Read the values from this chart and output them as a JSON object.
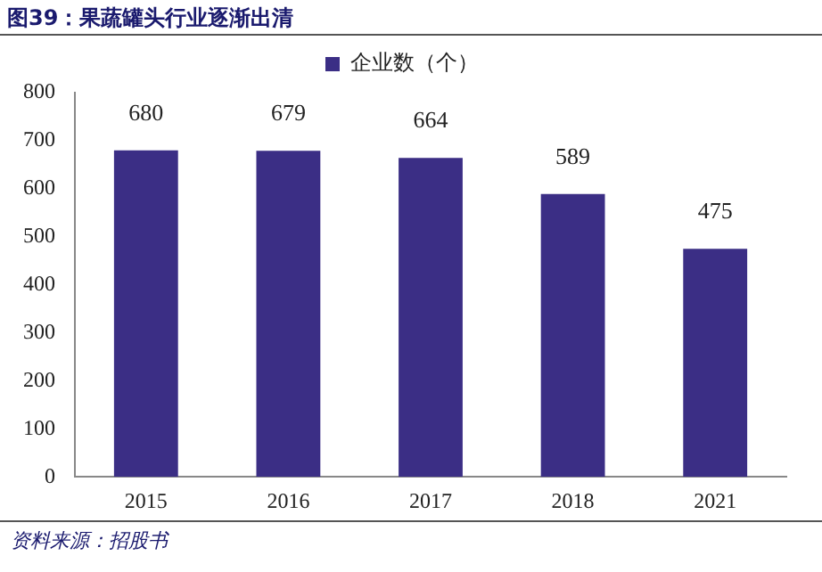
{
  "chart_data": {
    "type": "bar",
    "title": "图39：果蔬罐头行业逐渐出清",
    "categories": [
      "2015",
      "2016",
      "2017",
      "2018",
      "2021"
    ],
    "series": [
      {
        "name": "企业数（个）",
        "color": "#3b2e85",
        "values": [
          680,
          679,
          664,
          589,
          475
        ]
      }
    ],
    "ylim": [
      0,
      800
    ],
    "yticks": [
      0,
      100,
      200,
      300,
      400,
      500,
      600,
      700,
      800
    ],
    "grid": false,
    "legend": "top",
    "data_labels": true,
    "annotations": [
      "资料来源：招股书"
    ]
  }
}
